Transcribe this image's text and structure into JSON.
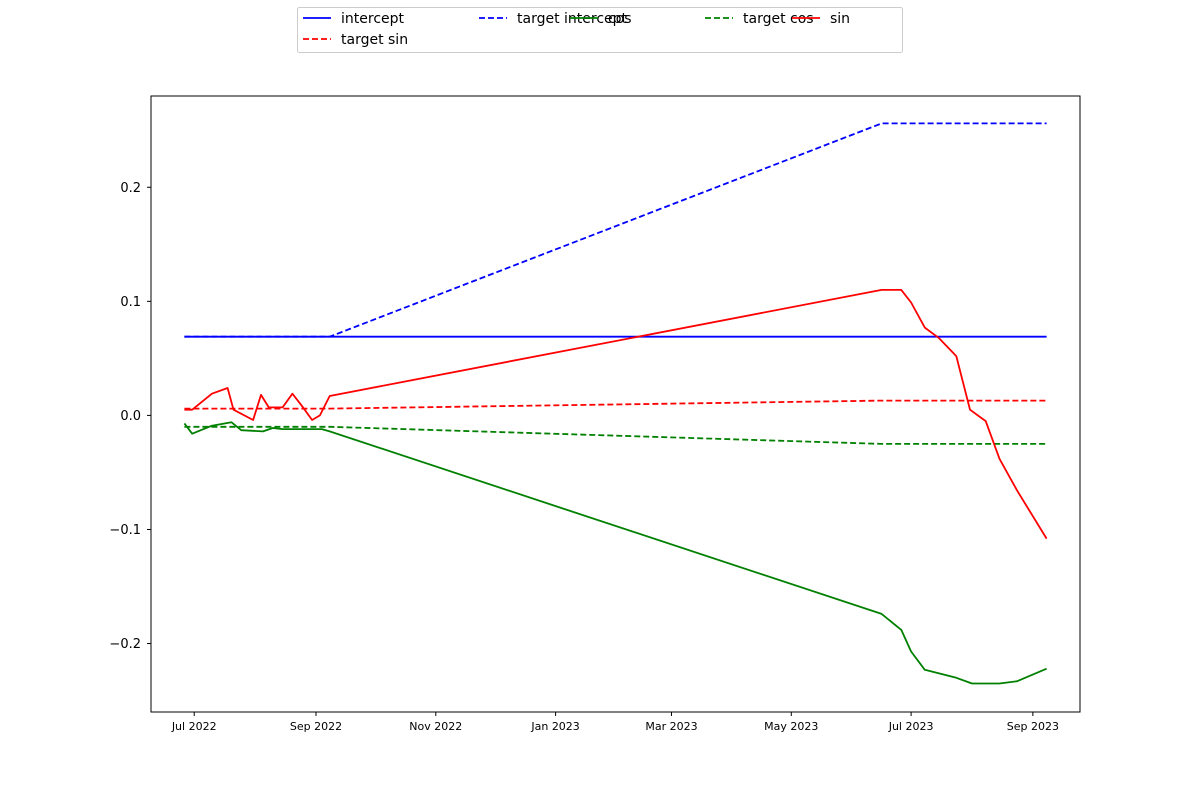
{
  "chart_data": {
    "type": "line",
    "title": "",
    "xlabel": "",
    "ylabel": "",
    "x_type": "date",
    "xlim": [
      "2022-06-09",
      "2023-09-25"
    ],
    "ylim": [
      -0.26,
      0.28
    ],
    "x_ticks": [
      {
        "date": "2022-07-01",
        "label": "Jul 2022"
      },
      {
        "date": "2022-09-01",
        "label": "Sep 2022"
      },
      {
        "date": "2022-11-01",
        "label": "Nov 2022"
      },
      {
        "date": "2023-01-01",
        "label": "Jan 2023"
      },
      {
        "date": "2023-03-01",
        "label": "Mar 2023"
      },
      {
        "date": "2023-05-01",
        "label": "May 2023"
      },
      {
        "date": "2023-07-01",
        "label": "Jul 2023"
      },
      {
        "date": "2023-09-01",
        "label": "Sep 2023"
      }
    ],
    "y_ticks": [
      {
        "value": 0.2,
        "label": "0.2"
      },
      {
        "value": 0.1,
        "label": "0.1"
      },
      {
        "value": 0.0,
        "label": "0.0"
      },
      {
        "value": -0.1,
        "label": "−0.1"
      },
      {
        "value": -0.2,
        "label": "−0.2"
      }
    ],
    "grid": false,
    "legend": {
      "placement": "top-center",
      "columns": 5
    },
    "series": [
      {
        "name": "intercept",
        "color": "#0000ff",
        "style": "solid",
        "points": [
          [
            "2022-06-26",
            0.069
          ],
          [
            "2022-09-08",
            0.069
          ],
          [
            "2023-06-16",
            0.069
          ],
          [
            "2023-09-08",
            0.069
          ]
        ]
      },
      {
        "name": "target intercept",
        "color": "#0000ff",
        "style": "dashed",
        "points": [
          [
            "2022-06-26",
            0.069
          ],
          [
            "2022-09-08",
            0.069
          ],
          [
            "2023-06-16",
            0.256
          ],
          [
            "2023-09-08",
            0.256
          ]
        ]
      },
      {
        "name": "cos",
        "color": "#008000",
        "style": "solid",
        "points": [
          [
            "2022-06-26",
            -0.007
          ],
          [
            "2022-06-30",
            -0.016
          ],
          [
            "2022-07-10",
            -0.009
          ],
          [
            "2022-07-20",
            -0.006
          ],
          [
            "2022-07-25",
            -0.013
          ],
          [
            "2022-08-05",
            -0.014
          ],
          [
            "2022-08-10",
            -0.011
          ],
          [
            "2022-08-15",
            -0.012
          ],
          [
            "2022-08-30",
            -0.012
          ],
          [
            "2022-09-04",
            -0.012
          ],
          [
            "2022-09-08",
            -0.014
          ],
          [
            "2023-06-16",
            -0.174
          ],
          [
            "2023-06-26",
            -0.188
          ],
          [
            "2023-07-01",
            -0.207
          ],
          [
            "2023-07-08",
            -0.223
          ],
          [
            "2023-07-24",
            -0.23
          ],
          [
            "2023-08-01",
            -0.235
          ],
          [
            "2023-08-15",
            -0.235
          ],
          [
            "2023-08-24",
            -0.233
          ],
          [
            "2023-09-08",
            -0.222
          ]
        ]
      },
      {
        "name": "target cos",
        "color": "#008000",
        "style": "dashed",
        "points": [
          [
            "2022-06-26",
            -0.01
          ],
          [
            "2022-09-08",
            -0.01
          ],
          [
            "2023-06-16",
            -0.025
          ],
          [
            "2023-09-08",
            -0.025
          ]
        ]
      },
      {
        "name": "sin",
        "color": "#ff0000",
        "style": "solid",
        "points": [
          [
            "2022-06-26",
            0.005
          ],
          [
            "2022-06-30",
            0.005
          ],
          [
            "2022-07-10",
            0.019
          ],
          [
            "2022-07-18",
            0.024
          ],
          [
            "2022-07-21",
            0.005
          ],
          [
            "2022-07-31",
            -0.004
          ],
          [
            "2022-08-04",
            0.018
          ],
          [
            "2022-08-08",
            0.007
          ],
          [
            "2022-08-15",
            0.007
          ],
          [
            "2022-08-20",
            0.019
          ],
          [
            "2022-08-25",
            0.008
          ],
          [
            "2022-08-30",
            -0.004
          ],
          [
            "2022-09-03",
            0.0
          ],
          [
            "2022-09-08",
            0.017
          ],
          [
            "2023-06-16",
            0.11
          ],
          [
            "2023-06-26",
            0.11
          ],
          [
            "2023-07-01",
            0.099
          ],
          [
            "2023-07-08",
            0.077
          ],
          [
            "2023-07-15",
            0.068
          ],
          [
            "2023-07-24",
            0.052
          ],
          [
            "2023-07-31",
            0.005
          ],
          [
            "2023-08-08",
            -0.005
          ],
          [
            "2023-08-15",
            -0.038
          ],
          [
            "2023-08-24",
            -0.066
          ],
          [
            "2023-09-08",
            -0.108
          ]
        ]
      },
      {
        "name": "target sin",
        "color": "#ff0000",
        "style": "dashed",
        "points": [
          [
            "2022-06-26",
            0.006
          ],
          [
            "2022-09-08",
            0.006
          ],
          [
            "2023-06-16",
            0.013
          ],
          [
            "2023-09-08",
            0.013
          ]
        ]
      }
    ]
  }
}
